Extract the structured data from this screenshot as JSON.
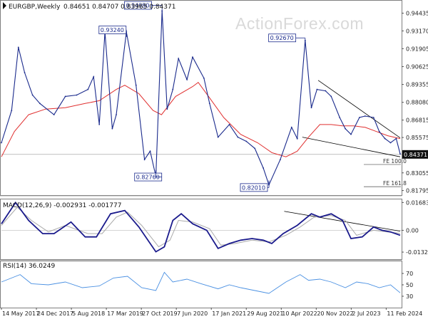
{
  "watermark": "ActionForex.com",
  "colors": {
    "price": "#1a2a8c",
    "sma": "#e03030",
    "macd": "#1a1a8c",
    "signal": "#aaaaaa",
    "rsi": "#4a90e2",
    "trend": "#000000",
    "level": "#666666"
  },
  "chart_data": [
    {
      "type": "line",
      "header": {
        "symbol": "EURGBP,Weekly",
        "values": "0.84651 0.84707 0.83965 0.84371"
      },
      "ylim": [
        0.8147,
        0.9527
      ],
      "y_ticks": [
        "0.94435",
        "0.93170",
        "0.91905",
        "0.90625",
        "0.89355",
        "0.88080",
        "0.86815",
        "0.85575",
        "0.84371",
        "0.83055",
        "0.81795"
      ],
      "x_ticks": [
        "14 May 2017",
        "24 Dec 2017",
        "5 Aug 2018",
        "17 Mar 2019",
        "27 Oct 2019",
        "7 Jun 2020",
        "17 Jan 2021",
        "29 Aug 2021",
        "10 Apr 2022",
        "20 Nov 2022",
        "2 Jul 2023",
        "11 Feb 2024"
      ],
      "current_price": 0.84371,
      "annotations": [
        {
          "label": "0.93240",
          "value": 0.9324,
          "date": "Mar 2019"
        },
        {
          "label": "0.94990",
          "value": 0.9499,
          "date": "Aug 2019"
        },
        {
          "label": "0.82760",
          "value": 0.8276,
          "date": "Mar 2020"
        },
        {
          "label": "0.92670",
          "value": 0.9267,
          "date": "Sep 2022"
        },
        {
          "label": "0.82010",
          "value": 0.8201,
          "date": "Feb 2022"
        }
      ],
      "fe_levels": [
        {
          "label": "FE 100.0",
          "value": 0.8365
        },
        {
          "label": "FE 161.8",
          "value": 0.8207
        }
      ],
      "series": [
        {
          "name": "EURGBP",
          "values": [
            [
              2017.37,
              0.852
            ],
            [
              2017.55,
              0.875
            ],
            [
              2017.67,
              0.92
            ],
            [
              2017.78,
              0.902
            ],
            [
              2017.92,
              0.886
            ],
            [
              2018.05,
              0.88
            ],
            [
              2018.3,
              0.872
            ],
            [
              2018.5,
              0.885
            ],
            [
              2018.7,
              0.886
            ],
            [
              2018.9,
              0.89
            ],
            [
              2019.0,
              0.899
            ],
            [
              2019.1,
              0.865
            ],
            [
              2019.2,
              0.931
            ],
            [
              2019.33,
              0.862
            ],
            [
              2019.4,
              0.872
            ],
            [
              2019.58,
              0.931
            ],
            [
              2019.75,
              0.893
            ],
            [
              2019.9,
              0.84
            ],
            [
              2020.0,
              0.846
            ],
            [
              2020.1,
              0.828
            ],
            [
              2020.21,
              0.946
            ],
            [
              2020.3,
              0.876
            ],
            [
              2020.4,
              0.89
            ],
            [
              2020.5,
              0.912
            ],
            [
              2020.65,
              0.897
            ],
            [
              2020.75,
              0.913
            ],
            [
              2020.95,
              0.898
            ],
            [
              2021.05,
              0.88
            ],
            [
              2021.2,
              0.856
            ],
            [
              2021.4,
              0.865
            ],
            [
              2021.55,
              0.856
            ],
            [
              2021.7,
              0.853
            ],
            [
              2021.85,
              0.848
            ],
            [
              2022.0,
              0.834
            ],
            [
              2022.1,
              0.822
            ],
            [
              2022.3,
              0.84
            ],
            [
              2022.5,
              0.863
            ],
            [
              2022.6,
              0.855
            ],
            [
              2022.74,
              0.925
            ],
            [
              2022.85,
              0.877
            ],
            [
              2022.95,
              0.89
            ],
            [
              2023.1,
              0.889
            ],
            [
              2023.2,
              0.885
            ],
            [
              2023.35,
              0.87
            ],
            [
              2023.45,
              0.862
            ],
            [
              2023.55,
              0.858
            ],
            [
              2023.7,
              0.87
            ],
            [
              2023.8,
              0.871
            ],
            [
              2023.95,
              0.87
            ],
            [
              2024.05,
              0.86
            ],
            [
              2024.15,
              0.855
            ],
            [
              2024.25,
              0.852
            ],
            [
              2024.35,
              0.855
            ],
            [
              2024.42,
              0.844
            ]
          ]
        },
        {
          "name": "SMA",
          "values": [
            [
              2017.37,
              0.842
            ],
            [
              2017.6,
              0.86
            ],
            [
              2017.85,
              0.872
            ],
            [
              2018.15,
              0.876
            ],
            [
              2018.5,
              0.877
            ],
            [
              2018.85,
              0.88
            ],
            [
              2019.1,
              0.882
            ],
            [
              2019.4,
              0.89
            ],
            [
              2019.55,
              0.893
            ],
            [
              2019.8,
              0.887
            ],
            [
              2020.05,
              0.875
            ],
            [
              2020.2,
              0.872
            ],
            [
              2020.45,
              0.885
            ],
            [
              2020.75,
              0.892
            ],
            [
              2020.85,
              0.895
            ],
            [
              2021.05,
              0.884
            ],
            [
              2021.3,
              0.87
            ],
            [
              2021.6,
              0.858
            ],
            [
              2021.9,
              0.852
            ],
            [
              2022.15,
              0.845
            ],
            [
              2022.4,
              0.842
            ],
            [
              2022.6,
              0.846
            ],
            [
              2022.8,
              0.856
            ],
            [
              2023.0,
              0.865
            ],
            [
              2023.2,
              0.865
            ],
            [
              2023.4,
              0.864
            ],
            [
              2023.6,
              0.864
            ],
            [
              2023.8,
              0.863
            ],
            [
              2024.0,
              0.86
            ],
            [
              2024.2,
              0.857
            ],
            [
              2024.42,
              0.855
            ]
          ]
        }
      ]
    },
    {
      "type": "line",
      "header": "MACD(12,26,9) -0.002931 -0.001777",
      "ylim": [
        -0.0175,
        0.0183
      ],
      "y_ticks": [
        "0.016838",
        "0.00",
        "-0.0132"
      ],
      "series": [
        {
          "name": "MACD",
          "values": [
            [
              2017.37,
              0.004
            ],
            [
              2017.62,
              0.0168
            ],
            [
              2017.85,
              0.006
            ],
            [
              2018.1,
              -0.002
            ],
            [
              2018.3,
              -0.002
            ],
            [
              2018.6,
              0.005
            ],
            [
              2018.85,
              -0.004
            ],
            [
              2019.05,
              -0.004
            ],
            [
              2019.3,
              0.01
            ],
            [
              2019.55,
              0.012
            ],
            [
              2019.8,
              0.002
            ],
            [
              2020.1,
              -0.013
            ],
            [
              2020.25,
              -0.01
            ],
            [
              2020.4,
              0.006
            ],
            [
              2020.55,
              0.01
            ],
            [
              2020.75,
              0.004
            ],
            [
              2021.0,
              0.0
            ],
            [
              2021.2,
              -0.011
            ],
            [
              2021.4,
              -0.008
            ],
            [
              2021.6,
              -0.006
            ],
            [
              2021.8,
              -0.005
            ],
            [
              2022.0,
              -0.006
            ],
            [
              2022.15,
              -0.008
            ],
            [
              2022.35,
              -0.002
            ],
            [
              2022.6,
              0.003
            ],
            [
              2022.85,
              0.01
            ],
            [
              2023.0,
              0.008
            ],
            [
              2023.2,
              0.01
            ],
            [
              2023.4,
              0.006
            ],
            [
              2023.55,
              -0.005
            ],
            [
              2023.75,
              -0.004
            ],
            [
              2023.95,
              0.002
            ],
            [
              2024.1,
              0.0
            ],
            [
              2024.25,
              -0.001
            ],
            [
              2024.42,
              -0.003
            ]
          ]
        },
        {
          "name": "Signal",
          "values": [
            [
              2017.37,
              0.003
            ],
            [
              2017.65,
              0.014
            ],
            [
              2017.9,
              0.006
            ],
            [
              2018.2,
              -0.001
            ],
            [
              2018.5,
              0.003
            ],
            [
              2018.9,
              -0.002
            ],
            [
              2019.15,
              -0.002
            ],
            [
              2019.4,
              0.008
            ],
            [
              2019.6,
              0.011
            ],
            [
              2019.85,
              0.003
            ],
            [
              2020.15,
              -0.01
            ],
            [
              2020.35,
              -0.006
            ],
            [
              2020.5,
              0.006
            ],
            [
              2020.75,
              0.005
            ],
            [
              2021.05,
              0.001
            ],
            [
              2021.25,
              -0.009
            ],
            [
              2021.5,
              -0.008
            ],
            [
              2021.8,
              -0.006
            ],
            [
              2022.1,
              -0.007
            ],
            [
              2022.4,
              -0.003
            ],
            [
              2022.65,
              0.002
            ],
            [
              2022.9,
              0.008
            ],
            [
              2023.2,
              0.009
            ],
            [
              2023.45,
              0.006
            ],
            [
              2023.65,
              -0.003
            ],
            [
              2023.95,
              0.0
            ],
            [
              2024.2,
              -0.001
            ],
            [
              2024.42,
              -0.0018
            ]
          ]
        }
      ]
    },
    {
      "type": "line",
      "header": "RSI(14) 36.0249",
      "ylim": [
        10,
        90
      ],
      "y_ticks": [
        "70",
        "50",
        "30"
      ],
      "series": [
        {
          "name": "RSI",
          "values": [
            [
              2017.37,
              55
            ],
            [
              2017.7,
              68
            ],
            [
              2017.9,
              52
            ],
            [
              2018.2,
              50
            ],
            [
              2018.5,
              55
            ],
            [
              2018.8,
              45
            ],
            [
              2019.1,
              48
            ],
            [
              2019.35,
              62
            ],
            [
              2019.6,
              65
            ],
            [
              2019.85,
              45
            ],
            [
              2020.1,
              40
            ],
            [
              2020.25,
              72
            ],
            [
              2020.4,
              55
            ],
            [
              2020.65,
              60
            ],
            [
              2020.9,
              52
            ],
            [
              2021.2,
              43
            ],
            [
              2021.4,
              50
            ],
            [
              2021.6,
              45
            ],
            [
              2021.85,
              40
            ],
            [
              2022.1,
              35
            ],
            [
              2022.4,
              55
            ],
            [
              2022.65,
              68
            ],
            [
              2022.8,
              58
            ],
            [
              2023.0,
              60
            ],
            [
              2023.2,
              55
            ],
            [
              2023.45,
              45
            ],
            [
              2023.65,
              55
            ],
            [
              2023.85,
              52
            ],
            [
              2024.05,
              45
            ],
            [
              2024.25,
              50
            ],
            [
              2024.42,
              36
            ]
          ]
        }
      ]
    }
  ]
}
